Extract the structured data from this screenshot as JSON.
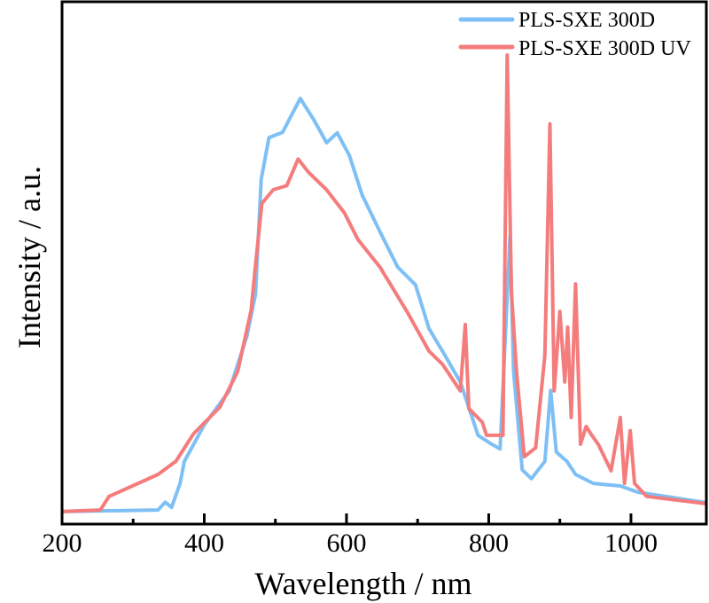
{
  "chart_data": {
    "type": "line",
    "title": "",
    "xlabel": "Wavelength / nm",
    "ylabel": "Intensity / a.u.",
    "xlim": [
      200,
      1106
    ],
    "ylim": [
      0,
      100
    ],
    "x_ticks": [
      200,
      400,
      600,
      800,
      1000
    ],
    "x_minor_ticks": [
      300,
      500,
      700,
      900
    ],
    "grid": false,
    "legend": "top-right",
    "series": [
      {
        "name": "PLS-SXE 300D",
        "color": "#7ec0f5",
        "points": [
          [
            200,
            2.4
          ],
          [
            335,
            2.7
          ],
          [
            345,
            4.2
          ],
          [
            354,
            3.2
          ],
          [
            366,
            7.8
          ],
          [
            372,
            12
          ],
          [
            400,
            19
          ],
          [
            435,
            25.5
          ],
          [
            460,
            36
          ],
          [
            472,
            44
          ],
          [
            480,
            66
          ],
          [
            491,
            74
          ],
          [
            510,
            75
          ],
          [
            535,
            81.5
          ],
          [
            554,
            77.4
          ],
          [
            572,
            73
          ],
          [
            587,
            74.9
          ],
          [
            604,
            70.6
          ],
          [
            622,
            63
          ],
          [
            647,
            56
          ],
          [
            672,
            49.2
          ],
          [
            697,
            45.8
          ],
          [
            716,
            37.4
          ],
          [
            735,
            33.1
          ],
          [
            760,
            27.2
          ],
          [
            785,
            17
          ],
          [
            804,
            15.3
          ],
          [
            816,
            14.4
          ],
          [
            825,
            40.7
          ],
          [
            830,
            55.3
          ],
          [
            835,
            29.2
          ],
          [
            847,
            10.4
          ],
          [
            860,
            8.7
          ],
          [
            879,
            12
          ],
          [
            887,
            25.6
          ],
          [
            895,
            13.8
          ],
          [
            910,
            12
          ],
          [
            922,
            9.5
          ],
          [
            947,
            7.8
          ],
          [
            985,
            7.3
          ],
          [
            1010,
            6.1
          ],
          [
            1106,
            4.1
          ]
        ]
      },
      {
        "name": "PLS-SXE 300D UV",
        "color": "#f47c7c",
        "points": [
          [
            200,
            2.4
          ],
          [
            254,
            2.7
          ],
          [
            266,
            5.3
          ],
          [
            335,
            9.5
          ],
          [
            360,
            12
          ],
          [
            385,
            17.3
          ],
          [
            422,
            22.4
          ],
          [
            447,
            29.2
          ],
          [
            466,
            41
          ],
          [
            472,
            49.6
          ],
          [
            481,
            61.4
          ],
          [
            497,
            64
          ],
          [
            516,
            64.8
          ],
          [
            532,
            69.9
          ],
          [
            547,
            67.3
          ],
          [
            572,
            64
          ],
          [
            597,
            59.6
          ],
          [
            616,
            54.5
          ],
          [
            647,
            49.2
          ],
          [
            685,
            40.7
          ],
          [
            716,
            33.1
          ],
          [
            735,
            30.6
          ],
          [
            760,
            25.5
          ],
          [
            767,
            38.2
          ],
          [
            772,
            22.1
          ],
          [
            791,
            19.5
          ],
          [
            797,
            17
          ],
          [
            820,
            17
          ],
          [
            826,
            89.8
          ],
          [
            832,
            44.3
          ],
          [
            839,
            29.2
          ],
          [
            850,
            12.9
          ],
          [
            866,
            14.6
          ],
          [
            879,
            32.3
          ],
          [
            886,
            76.6
          ],
          [
            892,
            25.5
          ],
          [
            900,
            40.7
          ],
          [
            907,
            27.2
          ],
          [
            911,
            37.7
          ],
          [
            916,
            20.4
          ],
          [
            922,
            46
          ],
          [
            929,
            15.3
          ],
          [
            937,
            18.7
          ],
          [
            945,
            17
          ],
          [
            954,
            15.3
          ],
          [
            972,
            10.2
          ],
          [
            985,
            20.4
          ],
          [
            991,
            7.8
          ],
          [
            999,
            17.9
          ],
          [
            1005,
            7.8
          ],
          [
            1022,
            5.3
          ],
          [
            1106,
            3.9
          ]
        ]
      }
    ]
  }
}
